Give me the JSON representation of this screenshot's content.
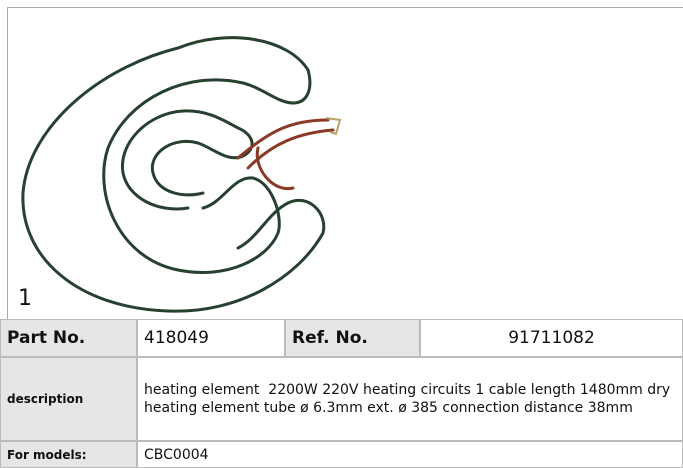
{
  "figure": {
    "label": "1"
  },
  "table": {
    "rows": [
      [
        "Part No.",
        "418049",
        "Ref. No.",
        "91711082"
      ],
      [
        "description",
        "heating element  2200W 220V heating circuits 1 cable length 1480mm dry heating element tube ø 6.3mm ext. ø 385 connection distance 38mm"
      ],
      [
        "For models:",
        "CBC0004"
      ]
    ]
  }
}
